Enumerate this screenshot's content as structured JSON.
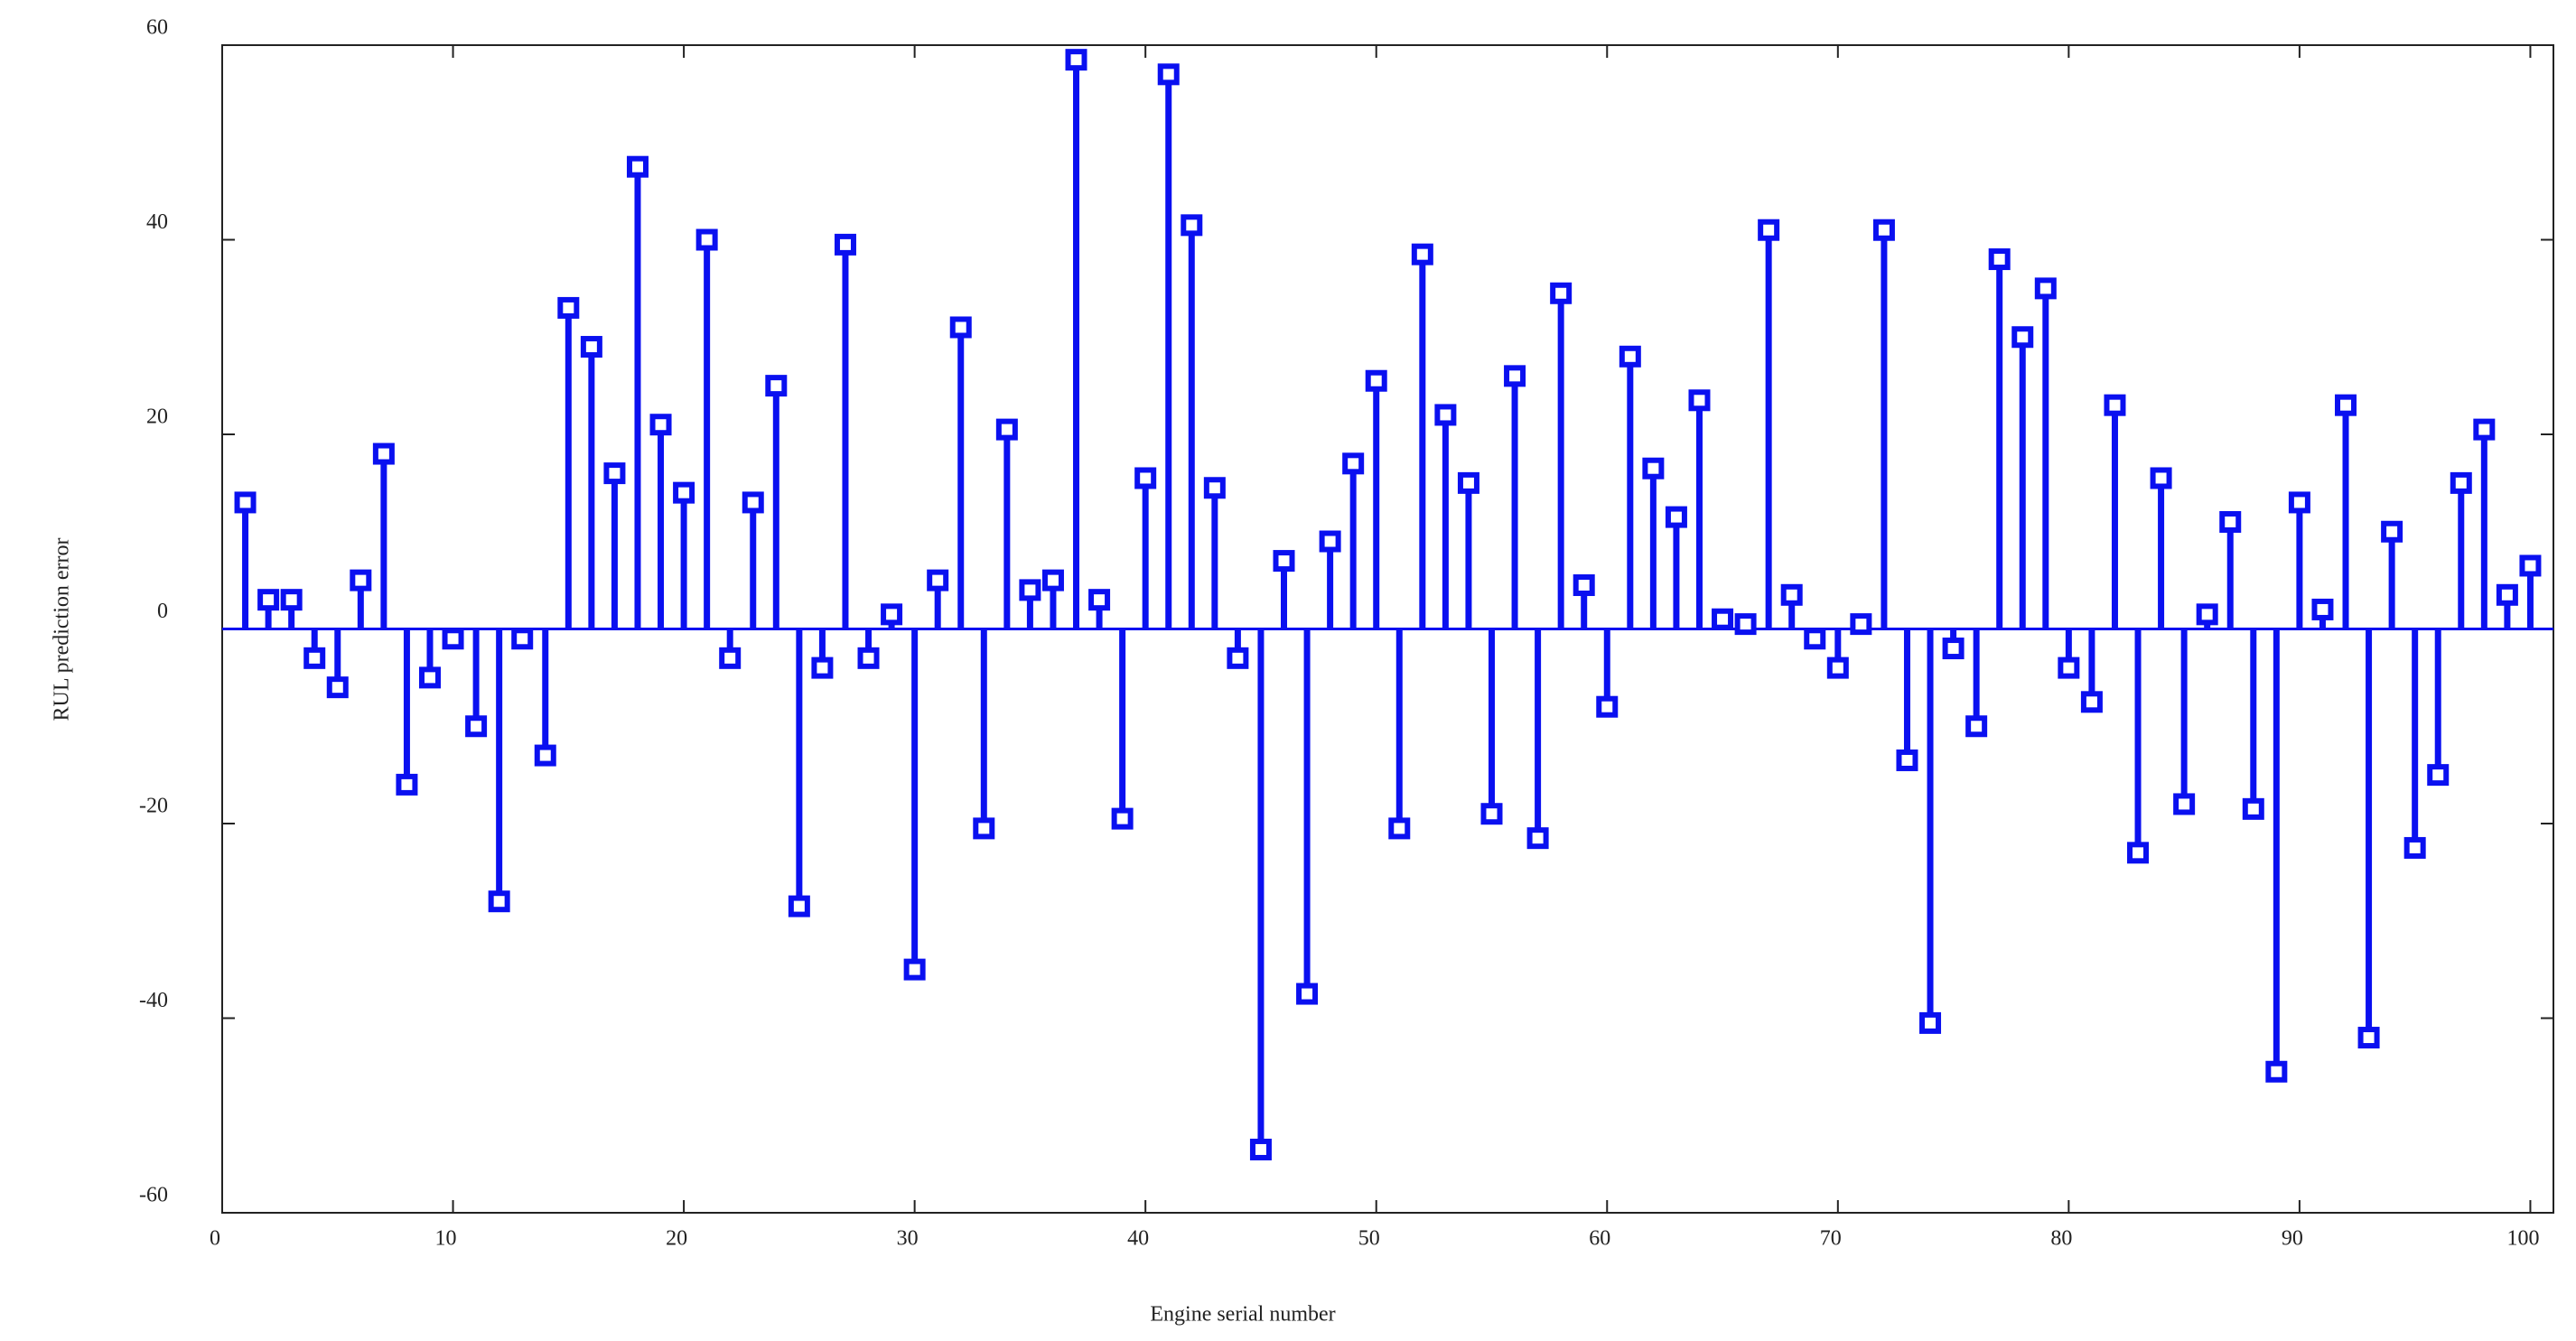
{
  "chart_data": {
    "type": "stem",
    "xlabel": "Engine serial number",
    "ylabel": "RUL prediction error",
    "x": [
      1,
      2,
      3,
      4,
      5,
      6,
      7,
      8,
      9,
      10,
      11,
      12,
      13,
      14,
      15,
      16,
      17,
      18,
      19,
      20,
      21,
      22,
      23,
      24,
      25,
      26,
      27,
      28,
      29,
      30,
      31,
      32,
      33,
      34,
      35,
      36,
      37,
      38,
      39,
      40,
      41,
      42,
      43,
      44,
      45,
      46,
      47,
      48,
      49,
      50,
      51,
      52,
      53,
      54,
      55,
      56,
      57,
      58,
      59,
      60,
      61,
      62,
      63,
      64,
      65,
      66,
      67,
      68,
      69,
      70,
      71,
      72,
      73,
      74,
      75,
      76,
      77,
      78,
      79,
      80,
      81,
      82,
      83,
      84,
      85,
      86,
      87,
      88,
      89,
      90,
      91,
      92,
      93,
      94,
      95,
      96,
      97,
      98,
      99,
      100
    ],
    "values": [
      13,
      3,
      3,
      -3,
      -6,
      5,
      18,
      -16,
      -5,
      -1,
      -10,
      -28,
      -1,
      -13,
      33,
      29,
      16,
      47.5,
      21,
      14,
      40,
      -3,
      13,
      25,
      -28.5,
      -4,
      39.5,
      -3,
      1.5,
      -35,
      5,
      31,
      -20.5,
      20.5,
      4,
      5,
      58.5,
      3,
      -19.5,
      15.5,
      57,
      41.5,
      14.5,
      -3,
      -53.5,
      7,
      -37.5,
      9,
      17,
      25.5,
      -20.5,
      38.5,
      22,
      15,
      -19,
      26,
      -21.5,
      34.5,
      4.5,
      -8,
      28,
      16.5,
      11.5,
      23.5,
      1,
      0.5,
      41,
      3.5,
      -1,
      -4,
      0.5,
      41,
      -13.5,
      -40.5,
      -2,
      -10,
      38,
      30,
      35,
      -4,
      -7.5,
      23,
      -23,
      15.5,
      -18,
      1.5,
      11,
      -18.5,
      -45.5,
      13,
      2,
      23,
      -42,
      10,
      -22.5,
      -15,
      15,
      20.5,
      3.5,
      6.5
    ],
    "color": "#0a10f0",
    "xlim": [
      0,
      101
    ],
    "xticks": [
      0,
      10,
      20,
      30,
      40,
      50,
      60,
      70,
      80,
      90,
      100
    ],
    "ylim": [
      -60,
      60
    ],
    "yticks": [
      -60,
      -40,
      -20,
      0,
      20,
      40,
      60
    ]
  }
}
